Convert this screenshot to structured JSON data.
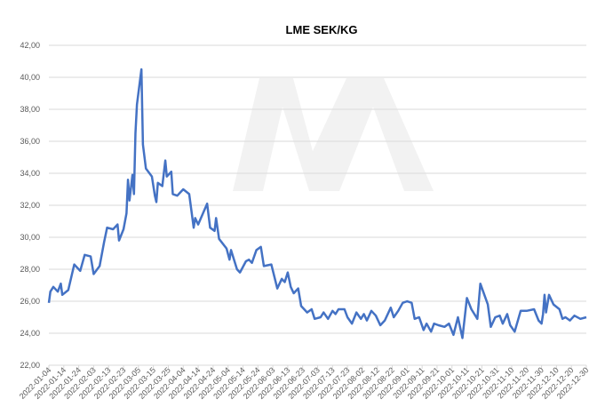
{
  "chart_data": {
    "type": "line",
    "title": "LME SEK/KG",
    "x": [
      "2022-01-04",
      "2022-01-05",
      "2022-01-07",
      "2022-01-10",
      "2022-01-12",
      "2022-01-13",
      "2022-01-17",
      "2022-01-19",
      "2022-01-21",
      "2022-01-25",
      "2022-01-28",
      "2022-02-01",
      "2022-02-03",
      "2022-02-07",
      "2022-02-10",
      "2022-02-12",
      "2022-02-16",
      "2022-02-19",
      "2022-02-20",
      "2022-02-23",
      "2022-02-25",
      "2022-02-26",
      "2022-02-27",
      "2022-03-01",
      "2022-03-02",
      "2022-03-03",
      "2022-03-04",
      "2022-03-07",
      "2022-03-08",
      "2022-03-10",
      "2022-03-14",
      "2022-03-16",
      "2022-03-17",
      "2022-03-18",
      "2022-03-21",
      "2022-03-23",
      "2022-03-24",
      "2022-03-27",
      "2022-03-28",
      "2022-03-31",
      "2022-04-04",
      "2022-04-08",
      "2022-04-11",
      "2022-04-12",
      "2022-04-14",
      "2022-04-20",
      "2022-04-22",
      "2022-04-25",
      "2022-04-26",
      "2022-04-28",
      "2022-05-03",
      "2022-05-05",
      "2022-05-06",
      "2022-05-10",
      "2022-05-12",
      "2022-05-16",
      "2022-05-18",
      "2022-05-20",
      "2022-05-23",
      "2022-05-26",
      "2022-05-28",
      "2022-06-02",
      "2022-06-06",
      "2022-06-09",
      "2022-06-11",
      "2022-06-13",
      "2022-06-15",
      "2022-06-17",
      "2022-06-20",
      "2022-06-22",
      "2022-06-26",
      "2022-06-29",
      "2022-07-01",
      "2022-07-05",
      "2022-07-07",
      "2022-07-10",
      "2022-07-13",
      "2022-07-15",
      "2022-07-17",
      "2022-07-21",
      "2022-07-23",
      "2022-07-26",
      "2022-07-29",
      "2022-08-01",
      "2022-08-03",
      "2022-08-05",
      "2022-08-08",
      "2022-08-11",
      "2022-08-14",
      "2022-08-17",
      "2022-08-21",
      "2022-08-23",
      "2022-08-26",
      "2022-08-29",
      "2022-09-01",
      "2022-09-04",
      "2022-09-06",
      "2022-09-09",
      "2022-09-12",
      "2022-09-14",
      "2022-09-17",
      "2022-09-19",
      "2022-09-22",
      "2022-09-26",
      "2022-09-29",
      "2022-10-02",
      "2022-10-05",
      "2022-10-08",
      "2022-10-11",
      "2022-10-14",
      "2022-10-18",
      "2022-10-20",
      "2022-10-25",
      "2022-10-27",
      "2022-10-30",
      "2022-11-02",
      "2022-11-04",
      "2022-11-07",
      "2022-11-09",
      "2022-11-12",
      "2022-11-16",
      "2022-11-20",
      "2022-11-25",
      "2022-11-28",
      "2022-11-30",
      "2022-12-01",
      "2022-12-02",
      "2022-12-03",
      "2022-12-05",
      "2022-12-08",
      "2022-12-12",
      "2022-12-14",
      "2022-12-16",
      "2022-12-19",
      "2022-12-22",
      "2022-12-26",
      "2022-12-30"
    ],
    "series": [
      {
        "name": "LME SEK/KG",
        "color": "#4472c4",
        "values": [
          25.9,
          26.6,
          26.9,
          26.6,
          27.1,
          26.4,
          26.7,
          27.5,
          28.3,
          27.9,
          28.9,
          28.8,
          27.7,
          28.2,
          29.7,
          30.6,
          30.5,
          30.8,
          29.8,
          30.5,
          31.5,
          33.6,
          32.3,
          33.9,
          32.7,
          36.5,
          38.3,
          40.5,
          35.8,
          34.3,
          33.8,
          32.6,
          32.2,
          33.4,
          33.2,
          34.8,
          33.8,
          34.1,
          32.7,
          32.6,
          33.0,
          32.7,
          30.6,
          31.2,
          30.8,
          32.1,
          30.6,
          30.4,
          31.2,
          29.9,
          29.3,
          28.6,
          29.2,
          28.0,
          27.8,
          28.5,
          28.6,
          28.4,
          29.2,
          29.4,
          28.2,
          28.3,
          26.8,
          27.4,
          27.2,
          27.8,
          26.9,
          26.5,
          26.8,
          25.7,
          25.3,
          25.5,
          24.9,
          25.0,
          25.3,
          24.9,
          25.4,
          25.2,
          25.5,
          25.5,
          25.0,
          24.6,
          25.3,
          24.9,
          25.2,
          24.8,
          25.4,
          25.1,
          24.5,
          24.8,
          25.6,
          25.0,
          25.4,
          25.9,
          26.0,
          25.9,
          24.9,
          25.0,
          24.2,
          24.6,
          24.1,
          24.6,
          24.5,
          24.4,
          24.6,
          23.9,
          25.0,
          23.7,
          26.2,
          25.5,
          24.9,
          27.1,
          25.8,
          24.4,
          25.0,
          25.1,
          24.6,
          25.2,
          24.5,
          24.1,
          25.4,
          25.4,
          25.5,
          24.8,
          24.6,
          25.2,
          26.4,
          25.3,
          26.4,
          25.8,
          25.5,
          24.9,
          25.0,
          24.8,
          25.1,
          24.9,
          25.0
        ]
      }
    ],
    "xlim": [
      "2022-01-04",
      "2022-12-30"
    ],
    "xticks": [
      "2022-01-04",
      "2022-01-14",
      "2022-01-24",
      "2022-02-03",
      "2022-02-13",
      "2022-02-23",
      "2022-03-05",
      "2022-03-15",
      "2022-03-25",
      "2022-04-04",
      "2022-04-14",
      "2022-04-24",
      "2022-05-04",
      "2022-05-14",
      "2022-05-24",
      "2022-06-03",
      "2022-06-13",
      "2022-06-23",
      "2022-07-03",
      "2022-07-13",
      "2022-07-23",
      "2022-08-02",
      "2022-08-12",
      "2022-08-22",
      "2022-09-01",
      "2022-09-11",
      "2022-09-21",
      "2022-10-01",
      "2022-10-11",
      "2022-10-21",
      "2022-10-31",
      "2022-11-10",
      "2022-11-20",
      "2022-11-30",
      "2022-12-10",
      "2022-12-20",
      "2022-12-30"
    ],
    "ylim": [
      22,
      42
    ],
    "yticks": [
      {
        "value": 22,
        "label": "22,00"
      },
      {
        "value": 24,
        "label": "24,00"
      },
      {
        "value": 26,
        "label": "26,00"
      },
      {
        "value": 28,
        "label": "28,00"
      },
      {
        "value": 30,
        "label": "30,00"
      },
      {
        "value": 32,
        "label": "32,00"
      },
      {
        "value": 34,
        "label": "34,00"
      },
      {
        "value": 36,
        "label": "36,00"
      },
      {
        "value": 38,
        "label": "38,00"
      },
      {
        "value": 40,
        "label": "40,00"
      },
      {
        "value": 42,
        "label": "42,00"
      }
    ],
    "grid": true
  }
}
